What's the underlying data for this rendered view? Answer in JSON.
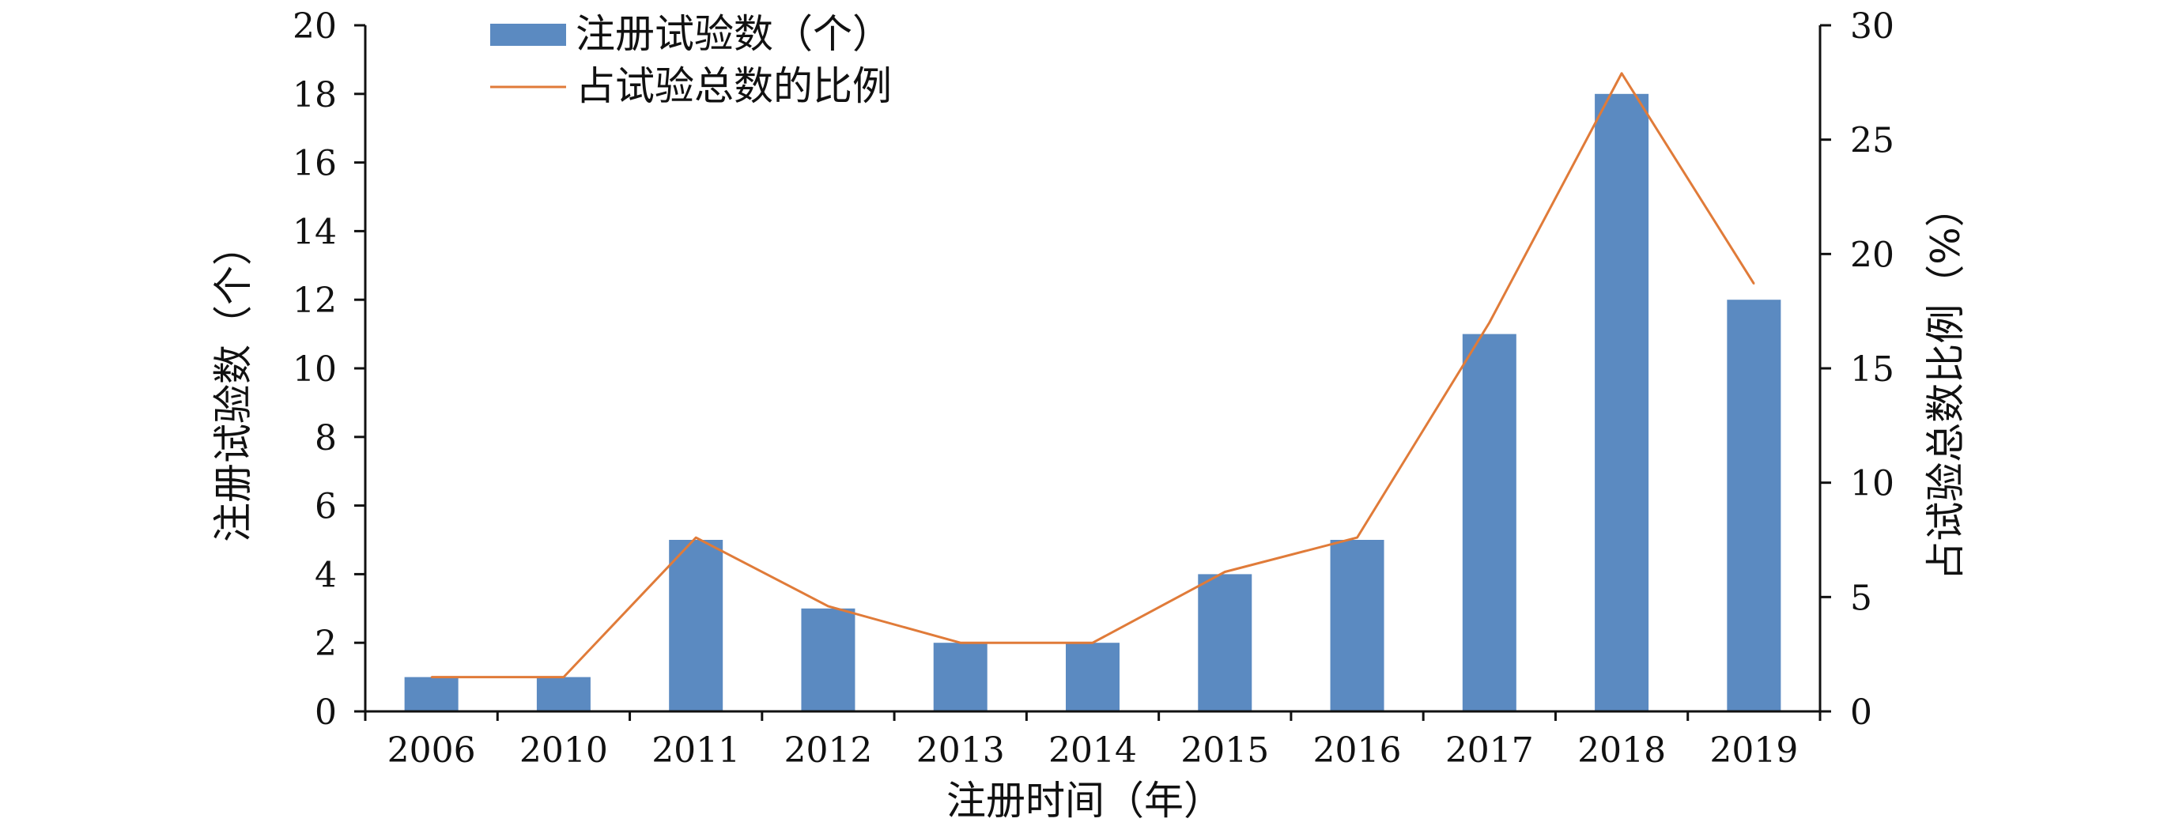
{
  "chart_data": {
    "type": "bar",
    "categories": [
      "2006",
      "2010",
      "2011",
      "2012",
      "2013",
      "2014",
      "2015",
      "2016",
      "2017",
      "2018",
      "2019"
    ],
    "series": [
      {
        "name": "注册试验数（个）",
        "type": "bar",
        "axis": "left",
        "color": "#5b8ac1",
        "values": [
          1,
          1,
          5,
          3,
          2,
          2,
          4,
          5,
          11,
          18,
          12
        ]
      },
      {
        "name": "占试验总数的比例",
        "type": "line",
        "axis": "right",
        "color": "#e07b39",
        "values": [
          1.5,
          1.5,
          7.6,
          4.6,
          3.0,
          3.0,
          6.1,
          7.6,
          17.0,
          27.9,
          18.7
        ]
      }
    ],
    "xlabel": "注册时间（年）",
    "ylabel": "注册试验数（个）",
    "y2label": "占试验总数比例（%）",
    "ylim": [
      0,
      20
    ],
    "y2lim": [
      0,
      30
    ],
    "yticks": [
      "0",
      "2",
      "4",
      "6",
      "8",
      "10",
      "12",
      "14",
      "16",
      "18",
      "20"
    ],
    "y2ticks": [
      "0",
      "5",
      "10",
      "15",
      "20",
      "25",
      "30"
    ],
    "grid": false,
    "legend_position": "top-left"
  }
}
